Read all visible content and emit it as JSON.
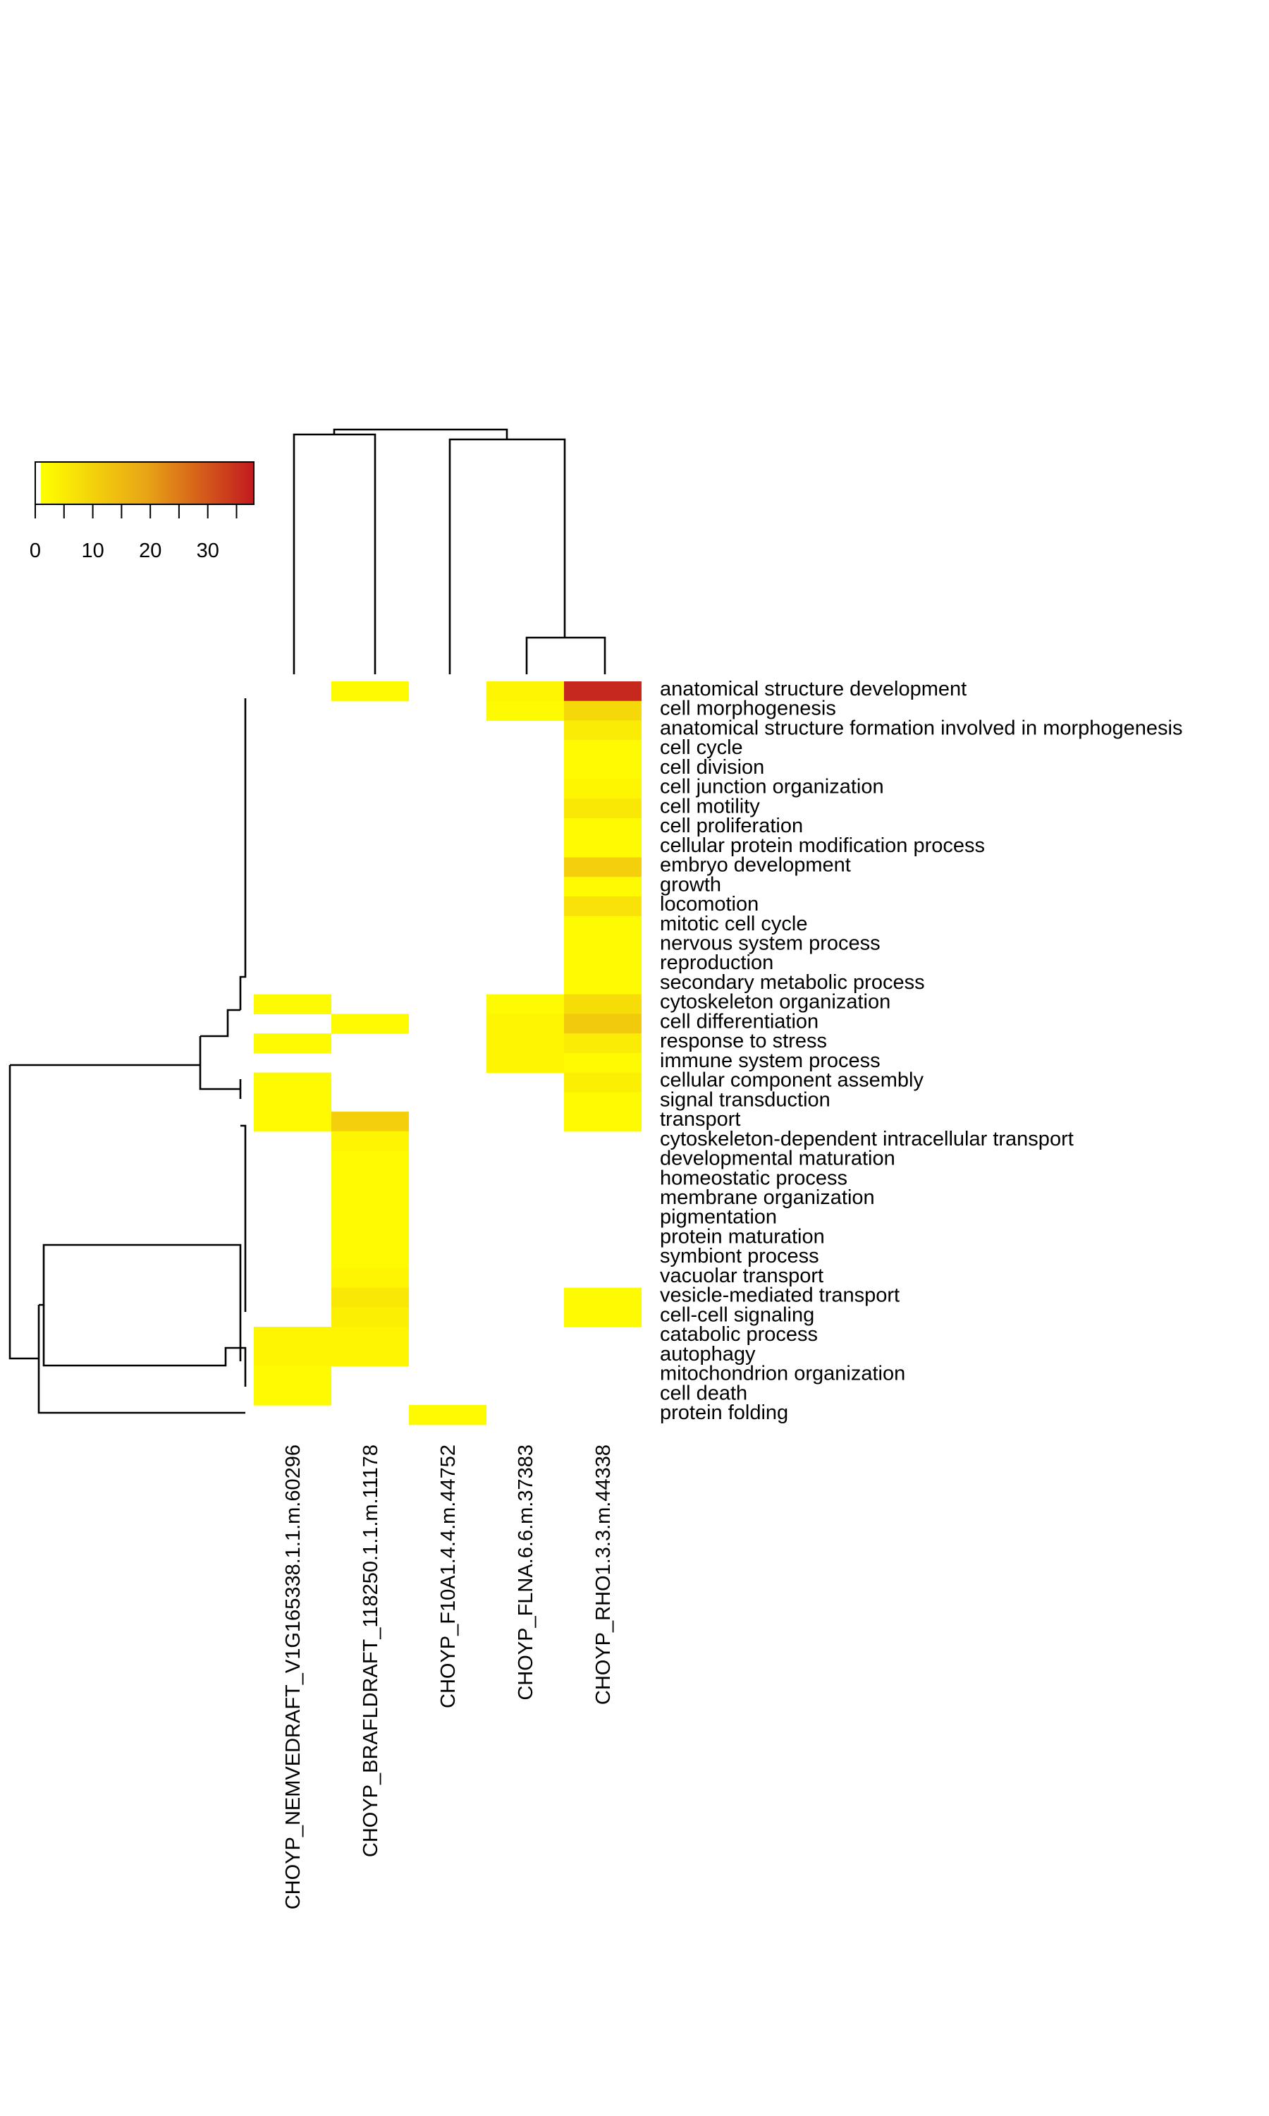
{
  "chart_data": {
    "type": "heatmap",
    "title": "",
    "xlabel": "",
    "ylabel": "",
    "rows": [
      "anatomical structure development",
      "cell morphogenesis",
      "anatomical structure formation involved in morphogenesis",
      "cell cycle",
      "cell division",
      "cell junction organization",
      "cell motility",
      "cell proliferation",
      "cellular protein modification process",
      "embryo development",
      "growth",
      "locomotion",
      "mitotic cell cycle",
      "nervous system process",
      "reproduction",
      "secondary metabolic process",
      "cytoskeleton organization",
      "cell differentiation",
      "response to stress",
      "immune system process",
      "cellular component assembly",
      "signal transduction",
      "transport",
      "cytoskeleton-dependent intracellular transport",
      "developmental maturation",
      "homeostatic process",
      "membrane organization",
      "pigmentation",
      "protein maturation",
      "symbiont process",
      "vacuolar transport",
      "vesicle-mediated transport",
      "cell-cell signaling",
      "catabolic process",
      "autophagy",
      "mitochondrion organization",
      "cell death",
      "protein folding"
    ],
    "columns": [
      "CHOYP_NEMVEDRAFT_V1G165338.1.1.m.60296",
      "CHOYP_BRAFLDRAFT_118250.1.1.m.11178",
      "CHOYP_F10A1.4.4.m.44752",
      "CHOYP_FLNA.6.6.m.37383",
      "CHOYP_RHO1.3.3.m.44338"
    ],
    "values": [
      [
        null,
        1,
        null,
        2,
        36
      ],
      [
        null,
        null,
        null,
        1,
        8
      ],
      [
        null,
        null,
        null,
        null,
        4
      ],
      [
        null,
        null,
        null,
        null,
        1
      ],
      [
        null,
        null,
        null,
        null,
        1
      ],
      [
        null,
        null,
        null,
        null,
        2
      ],
      [
        null,
        null,
        null,
        null,
        5
      ],
      [
        null,
        null,
        null,
        null,
        1
      ],
      [
        null,
        null,
        null,
        null,
        1
      ],
      [
        null,
        null,
        null,
        null,
        10
      ],
      [
        null,
        null,
        null,
        null,
        1
      ],
      [
        null,
        null,
        null,
        null,
        6
      ],
      [
        null,
        null,
        null,
        null,
        1
      ],
      [
        null,
        null,
        null,
        null,
        1
      ],
      [
        null,
        null,
        null,
        null,
        1
      ],
      [
        null,
        null,
        null,
        null,
        1
      ],
      [
        1,
        null,
        null,
        1,
        7
      ],
      [
        null,
        1,
        null,
        2,
        11
      ],
      [
        1,
        null,
        null,
        2,
        4
      ],
      [
        null,
        null,
        null,
        2,
        1
      ],
      [
        1,
        null,
        null,
        null,
        3
      ],
      [
        1,
        null,
        null,
        null,
        1
      ],
      [
        1,
        10,
        null,
        null,
        1
      ],
      [
        null,
        2,
        null,
        null,
        null
      ],
      [
        null,
        1,
        null,
        null,
        null
      ],
      [
        null,
        1,
        null,
        null,
        null
      ],
      [
        null,
        1,
        null,
        null,
        null
      ],
      [
        null,
        1,
        null,
        null,
        null
      ],
      [
        null,
        1,
        null,
        null,
        null
      ],
      [
        null,
        1,
        null,
        null,
        null
      ],
      [
        null,
        2,
        null,
        null,
        null
      ],
      [
        null,
        5,
        null,
        null,
        1
      ],
      [
        null,
        3,
        null,
        null,
        1
      ],
      [
        2,
        2,
        null,
        null,
        null
      ],
      [
        2,
        2,
        null,
        null,
        null
      ],
      [
        1,
        null,
        null,
        null,
        null
      ],
      [
        1,
        null,
        null,
        null,
        null
      ],
      [
        null,
        null,
        1,
        null,
        null
      ]
    ],
    "color_key": {
      "min": 0,
      "max": 38,
      "ticks": [
        0,
        10,
        20,
        30
      ],
      "tick_labels": [
        "0",
        "10",
        "20",
        "30"
      ],
      "low_color": "#ffff00",
      "mid_color": "#e8a316",
      "high_color": "#c21a1f"
    },
    "row_dendrogram": true,
    "column_dendrogram": true,
    "grid": false
  }
}
